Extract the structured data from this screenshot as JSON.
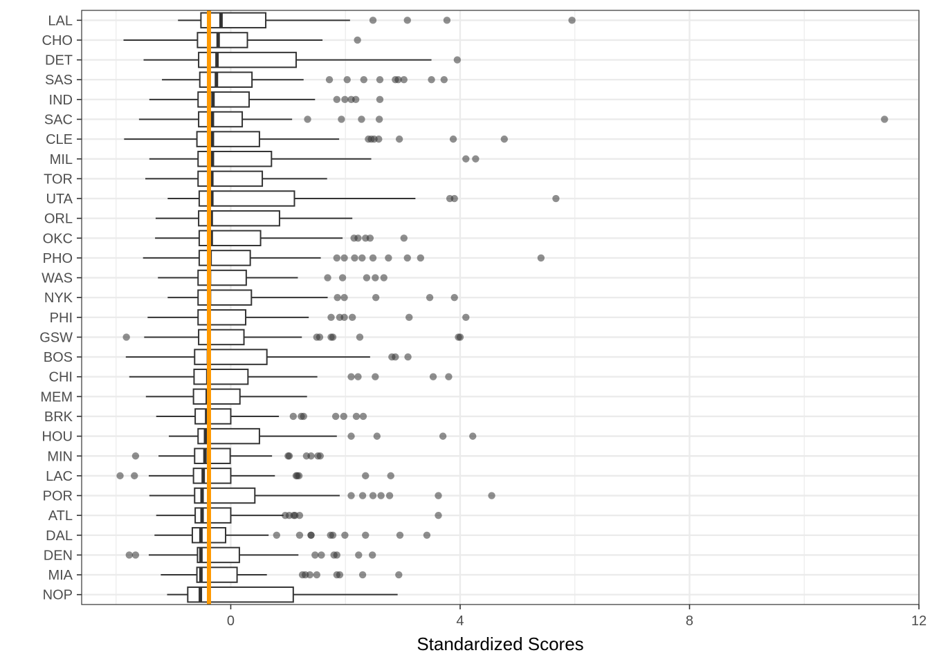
{
  "chart_data": {
    "type": "boxplot",
    "orientation": "horizontal",
    "xlabel": "Standardized Scores",
    "ylabel": "",
    "title": "",
    "xlim": [
      -2.6,
      12
    ],
    "xticks": [
      0,
      4,
      8,
      12
    ],
    "grid": true,
    "reference_line": {
      "x": -0.38,
      "color": "#FF9900"
    },
    "colors": {
      "box": "#333333",
      "outlier": "#333333",
      "grid": "#EBEBEB",
      "panel_border": "#333333"
    },
    "categories": [
      "LAL",
      "CHO",
      "DET",
      "SAS",
      "IND",
      "SAC",
      "CLE",
      "MIL",
      "TOR",
      "UTA",
      "ORL",
      "OKC",
      "PHO",
      "WAS",
      "NYK",
      "PHI",
      "GSW",
      "BOS",
      "CHI",
      "MEM",
      "BRK",
      "HOU",
      "MIN",
      "LAC",
      "POR",
      "ATL",
      "DAL",
      "DEN",
      "MIA",
      "NOP"
    ],
    "series": [
      {
        "team": "LAL",
        "whisker_low": -0.92,
        "q1": -0.52,
        "median": -0.17,
        "q3": 0.61,
        "whisker_high": 2.08,
        "outliers": [
          2.48,
          3.08,
          3.77,
          5.95
        ]
      },
      {
        "team": "CHO",
        "whisker_low": -1.87,
        "q1": -0.58,
        "median": -0.22,
        "q3": 0.29,
        "whisker_high": 1.6,
        "outliers": [
          2.21
        ]
      },
      {
        "team": "DET",
        "whisker_low": -1.52,
        "q1": -0.56,
        "median": -0.24,
        "q3": 1.14,
        "whisker_high": 3.5,
        "outliers": [
          3.95
        ]
      },
      {
        "team": "SAS",
        "whisker_low": -1.2,
        "q1": -0.54,
        "median": -0.25,
        "q3": 0.37,
        "whisker_high": 1.27,
        "outliers": [
          1.72,
          2.03,
          2.32,
          2.6,
          2.87,
          2.92,
          3.02,
          3.5,
          3.72
        ]
      },
      {
        "team": "IND",
        "whisker_low": -1.42,
        "q1": -0.57,
        "median": -0.31,
        "q3": 0.32,
        "whisker_high": 1.47,
        "outliers": [
          1.85,
          1.99,
          2.1,
          2.18,
          2.6
        ]
      },
      {
        "team": "SAC",
        "whisker_low": -1.6,
        "q1": -0.56,
        "median": -0.32,
        "q3": 0.2,
        "whisker_high": 1.07,
        "outliers": [
          1.34,
          1.93,
          2.28,
          2.59,
          11.4
        ]
      },
      {
        "team": "CLE",
        "whisker_low": -1.86,
        "q1": -0.59,
        "median": -0.32,
        "q3": 0.5,
        "whisker_high": 1.89,
        "outliers": [
          2.4,
          2.45,
          2.5,
          2.58,
          2.94,
          3.88,
          4.77
        ]
      },
      {
        "team": "MIL",
        "whisker_low": -1.42,
        "q1": -0.57,
        "median": -0.32,
        "q3": 0.71,
        "whisker_high": 2.45,
        "outliers": [
          4.1,
          4.27
        ]
      },
      {
        "team": "TOR",
        "whisker_low": -1.49,
        "q1": -0.57,
        "median": -0.33,
        "q3": 0.55,
        "whisker_high": 1.68,
        "outliers": []
      },
      {
        "team": "UTA",
        "whisker_low": -1.1,
        "q1": -0.55,
        "median": -0.33,
        "q3": 1.11,
        "whisker_high": 3.22,
        "outliers": [
          3.82,
          3.9,
          5.67
        ]
      },
      {
        "team": "ORL",
        "whisker_low": -1.31,
        "q1": -0.56,
        "median": -0.34,
        "q3": 0.85,
        "whisker_high": 2.12,
        "outliers": []
      },
      {
        "team": "OKC",
        "whisker_low": -1.32,
        "q1": -0.55,
        "median": -0.34,
        "q3": 0.52,
        "whisker_high": 1.95,
        "outliers": [
          2.15,
          2.22,
          2.35,
          2.43,
          3.02
        ]
      },
      {
        "team": "PHO",
        "whisker_low": -1.53,
        "q1": -0.55,
        "median": -0.36,
        "q3": 0.34,
        "whisker_high": 1.57,
        "outliers": [
          1.85,
          1.98,
          2.16,
          2.29,
          2.48,
          2.75,
          3.08,
          3.31,
          5.41
        ]
      },
      {
        "team": "WAS",
        "whisker_low": -1.27,
        "q1": -0.57,
        "median": -0.37,
        "q3": 0.27,
        "whisker_high": 1.17,
        "outliers": [
          1.69,
          1.95,
          2.37,
          2.52,
          2.67
        ]
      },
      {
        "team": "NYK",
        "whisker_low": -1.1,
        "q1": -0.57,
        "median": -0.37,
        "q3": 0.36,
        "whisker_high": 1.69,
        "outliers": [
          1.86,
          1.98,
          2.53,
          3.47,
          3.9
        ]
      },
      {
        "team": "PHI",
        "whisker_low": -1.45,
        "q1": -0.57,
        "median": -0.38,
        "q3": 0.26,
        "whisker_high": 1.36,
        "outliers": [
          1.75,
          1.9,
          1.98,
          2.12,
          3.11,
          4.1
        ]
      },
      {
        "team": "GSW",
        "whisker_low": -1.51,
        "q1": -0.56,
        "median": -0.38,
        "q3": 0.23,
        "whisker_high": 1.24,
        "outliers": [
          -1.82,
          1.5,
          1.55,
          1.75,
          1.78,
          2.25,
          3.97,
          4.0
        ]
      },
      {
        "team": "BOS",
        "whisker_low": -1.83,
        "q1": -0.63,
        "median": -0.39,
        "q3": 0.63,
        "whisker_high": 2.43,
        "outliers": [
          2.81,
          2.87,
          3.09
        ]
      },
      {
        "team": "CHI",
        "whisker_low": -1.77,
        "q1": -0.64,
        "median": -0.4,
        "q3": 0.3,
        "whisker_high": 1.51,
        "outliers": [
          2.1,
          2.22,
          2.52,
          3.53,
          3.8
        ]
      },
      {
        "team": "MEM",
        "whisker_low": -1.48,
        "q1": -0.65,
        "median": -0.41,
        "q3": 0.16,
        "whisker_high": 1.33,
        "outliers": []
      },
      {
        "team": "BRK",
        "whisker_low": -1.3,
        "q1": -0.62,
        "median": -0.42,
        "q3": 0.0,
        "whisker_high": 0.84,
        "outliers": [
          1.09,
          1.23,
          1.27,
          1.83,
          1.97,
          2.19,
          2.31
        ]
      },
      {
        "team": "HOU",
        "whisker_low": -1.08,
        "q1": -0.57,
        "median": -0.44,
        "q3": 0.5,
        "whisker_high": 1.85,
        "outliers": [
          2.1,
          2.55,
          3.7,
          4.22
        ]
      },
      {
        "team": "MIN",
        "whisker_low": -1.26,
        "q1": -0.63,
        "median": -0.45,
        "q3": -0.01,
        "whisker_high": 0.72,
        "outliers": [
          -1.66,
          1.0,
          1.02,
          1.32,
          1.4,
          1.52,
          1.56
        ]
      },
      {
        "team": "LAC",
        "whisker_low": -1.43,
        "q1": -0.65,
        "median": -0.48,
        "q3": 0.0,
        "whisker_high": 0.77,
        "outliers": [
          -1.93,
          -1.68,
          1.14,
          1.16,
          1.19,
          2.35,
          2.79
        ]
      },
      {
        "team": "POR",
        "whisker_low": -1.42,
        "q1": -0.63,
        "median": -0.5,
        "q3": 0.42,
        "whisker_high": 1.9,
        "outliers": [
          2.1,
          2.3,
          2.48,
          2.62,
          2.77,
          3.62,
          4.55
        ]
      },
      {
        "team": "ATL",
        "whisker_low": -1.3,
        "q1": -0.62,
        "median": -0.5,
        "q3": 0.0,
        "whisker_high": 0.92,
        "outliers": [
          0.95,
          1.02,
          1.1,
          1.12,
          1.2,
          3.62
        ]
      },
      {
        "team": "DAL",
        "whisker_low": -1.33,
        "q1": -0.67,
        "median": -0.52,
        "q3": -0.09,
        "whisker_high": 0.66,
        "outliers": [
          0.8,
          1.2,
          1.4,
          1.4,
          1.74,
          1.78,
          1.99,
          2.35,
          2.95,
          3.42
        ]
      },
      {
        "team": "DEN",
        "whisker_low": -1.43,
        "q1": -0.58,
        "median": -0.52,
        "q3": 0.15,
        "whisker_high": 1.18,
        "outliers": [
          -1.77,
          -1.66,
          1.47,
          1.58,
          1.8,
          1.85,
          2.23,
          2.47
        ]
      },
      {
        "team": "MIA",
        "whisker_low": -1.22,
        "q1": -0.59,
        "median": -0.52,
        "q3": 0.11,
        "whisker_high": 0.63,
        "outliers": [
          1.25,
          1.3,
          1.38,
          1.5,
          1.85,
          1.9,
          2.3,
          2.93
        ]
      },
      {
        "team": "NOP",
        "whisker_low": -1.11,
        "q1": -0.75,
        "median": -0.53,
        "q3": 1.09,
        "whisker_high": 2.91,
        "outliers": []
      }
    ]
  }
}
